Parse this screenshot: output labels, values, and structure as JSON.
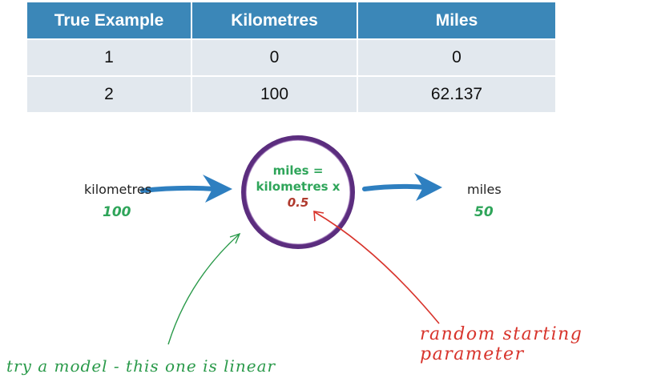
{
  "table": {
    "headers": [
      "True Example",
      "Kilometres",
      "Miles"
    ],
    "rows": [
      [
        "1",
        "0",
        "0"
      ],
      [
        "2",
        "100",
        "62.137"
      ]
    ]
  },
  "diagram": {
    "input_label": "kilometres",
    "input_value": "100",
    "formula_line1": "miles =",
    "formula_line2": "kilometres x",
    "formula_param": "0.5",
    "output_label": "miles",
    "output_value": "50"
  },
  "annotations": {
    "model_note": "try a model - this one is linear",
    "param_note": "random starting parameter"
  },
  "colors": {
    "header_bg": "#3b87b8",
    "cell_bg": "#e2e8ee",
    "arrow_blue": "#2e7fc0",
    "circle_purple": "#5b2d7e",
    "value_green": "#2fa55a",
    "param_red": "#b03a2e",
    "note_green": "#2a9a4a",
    "note_red": "#d8342c"
  }
}
